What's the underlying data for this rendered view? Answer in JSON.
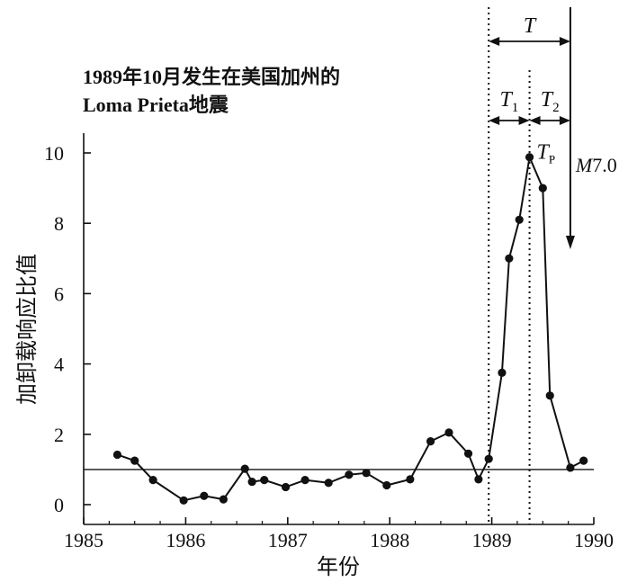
{
  "chart_data": {
    "type": "line",
    "title_lines": [
      "1989年10月发生在美国加州的",
      "Loma Prieta地震"
    ],
    "xlabel": "年份",
    "ylabel": "加卸载响应比值",
    "xlim": [
      1985,
      1990
    ],
    "ylim": [
      0,
      10
    ],
    "x_ticks": [
      1985,
      1986,
      1987,
      1988,
      1989,
      1990
    ],
    "y_ticks": [
      0,
      2,
      4,
      6,
      8,
      10
    ],
    "reference_line_y": 1,
    "grid": false,
    "series": [
      {
        "x": [
          1985.33,
          1985.5,
          1985.68,
          1985.98,
          1986.18,
          1986.37,
          1986.58,
          1986.65,
          1986.77,
          1986.98,
          1987.17,
          1987.4,
          1987.6,
          1987.77,
          1987.97,
          1988.2,
          1988.4,
          1988.58,
          1988.77,
          1988.87,
          1988.97,
          1989.1,
          1989.17,
          1989.27,
          1989.37,
          1989.5,
          1989.57,
          1989.77,
          1989.9
        ],
        "values": [
          1.42,
          1.25,
          0.7,
          0.12,
          0.25,
          0.15,
          1.02,
          0.65,
          0.7,
          0.5,
          0.7,
          0.62,
          0.85,
          0.9,
          0.55,
          0.72,
          1.8,
          2.05,
          1.45,
          0.72,
          1.3,
          3.75,
          7.0,
          8.1,
          9.88,
          9.0,
          3.1,
          1.05,
          1.25
        ]
      }
    ],
    "markers": {
      "t1_start_x": 1988.97,
      "tp_x": 1989.37,
      "quake_x": 1989.77
    },
    "annotations": {
      "T": "T",
      "T1_main": "T",
      "T1_sub": "1",
      "T2_main": "T",
      "T2_sub": "2",
      "TP_main": "T",
      "TP_sub": "P",
      "M_label": "M",
      "M_value": "7.0"
    }
  }
}
